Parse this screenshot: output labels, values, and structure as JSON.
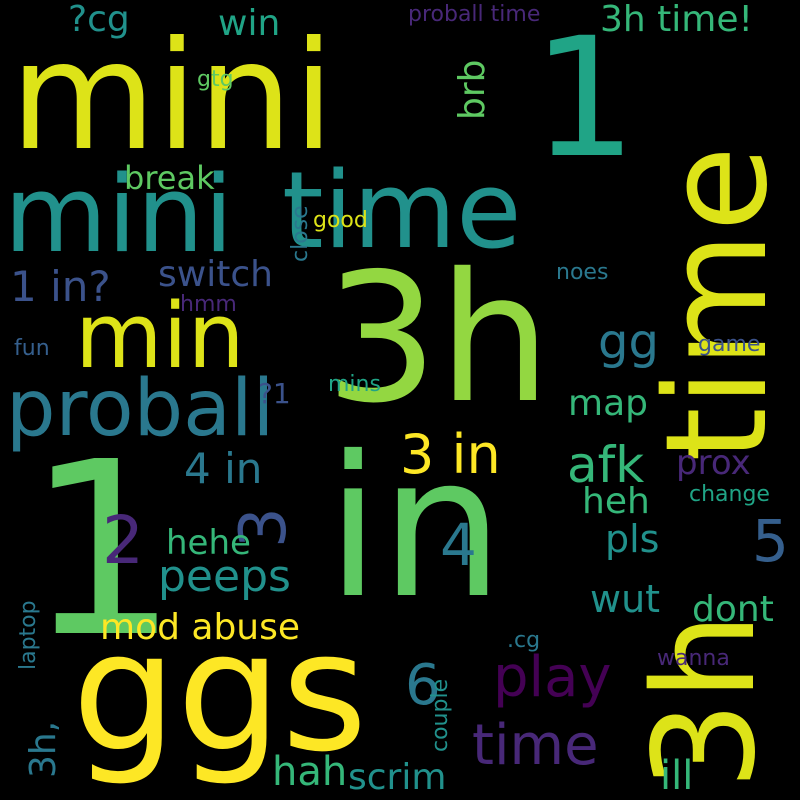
{
  "palette": {
    "background": "#000000",
    "yellow": "#fde725",
    "yellow_green": "#dde318",
    "lime": "#93d741",
    "green": "#5ec962",
    "mint": "#35b779",
    "teal_green": "#20a486",
    "teal": "#21918c",
    "steel_teal": "#2a788e",
    "blue": "#355f8d",
    "indigo": "#3b528b",
    "purple": "#482878",
    "dark_purple": "#440154"
  },
  "words": [
    {
      "text": "1",
      "color": "#5ec962"
    },
    {
      "text": "in",
      "color": "#5ec962"
    },
    {
      "text": "3h",
      "color": "#93d741"
    },
    {
      "text": "ggs",
      "color": "#fde725"
    },
    {
      "text": "mini",
      "color": "#dde318"
    },
    {
      "text": "1",
      "color": "#20a486"
    },
    {
      "text": "mini",
      "color": "#21918c"
    },
    {
      "text": "time",
      "color": "#21918c"
    },
    {
      "text": "time",
      "color": "#dde318"
    },
    {
      "text": "3h",
      "color": "#dde318"
    },
    {
      "text": "min",
      "color": "#dde318"
    },
    {
      "text": "proball",
      "color": "#2a788e"
    },
    {
      "text": "3 in",
      "color": "#fde725"
    },
    {
      "text": "afk",
      "color": "#35b779"
    },
    {
      "text": "play",
      "color": "#440154"
    },
    {
      "text": "time",
      "color": "#482878"
    },
    {
      "text": "peeps",
      "color": "#21918c"
    },
    {
      "text": "4 in",
      "color": "#2a788e"
    },
    {
      "text": "1 in?",
      "color": "#3b528b"
    },
    {
      "text": "switch",
      "color": "#3b528b"
    },
    {
      "text": "2",
      "color": "#482878"
    },
    {
      "text": "3",
      "color": "#3b528b"
    },
    {
      "text": "4",
      "color": "#2a788e"
    },
    {
      "text": "5",
      "color": "#355f8d"
    },
    {
      "text": "6",
      "color": "#2a788e"
    },
    {
      "text": "gg",
      "color": "#2a788e"
    },
    {
      "text": "map",
      "color": "#35b779"
    },
    {
      "text": "heh",
      "color": "#35b779"
    },
    {
      "text": "prox",
      "color": "#482878"
    },
    {
      "text": "pls",
      "color": "#21918c"
    },
    {
      "text": "hehe",
      "color": "#35b779"
    },
    {
      "text": "mod abuse",
      "color": "#fde725"
    },
    {
      "text": "wut",
      "color": "#21918c"
    },
    {
      "text": "dont",
      "color": "#35b779"
    },
    {
      "text": "hah",
      "color": "#35b779"
    },
    {
      "text": "scrim",
      "color": "#21918c"
    },
    {
      "text": "ill",
      "color": "#35b779"
    },
    {
      "text": "3h,",
      "color": "#2a788e"
    },
    {
      "text": "couple",
      "color": "#21918c"
    },
    {
      "text": "laptop",
      "color": "#2a788e"
    },
    {
      "text": "wanna",
      "color": "#482878"
    },
    {
      "text": ".cg",
      "color": "#2a788e"
    },
    {
      "text": "change",
      "color": "#20a486"
    },
    {
      "text": "game",
      "color": "#3b528b"
    },
    {
      "text": "noes",
      "color": "#2a788e"
    },
    {
      "text": "mins",
      "color": "#20a486"
    },
    {
      "text": "?1",
      "color": "#3b528b"
    },
    {
      "text": "fun",
      "color": "#355f8d"
    },
    {
      "text": "hmm",
      "color": "#482878"
    },
    {
      "text": "close",
      "color": "#2a788e"
    },
    {
      "text": "good",
      "color": "#dde318"
    },
    {
      "text": "break",
      "color": "#5ec962"
    },
    {
      "text": "gtg",
      "color": "#5ec962"
    },
    {
      "text": "?cg",
      "color": "#21918c"
    },
    {
      "text": "win",
      "color": "#20a486"
    },
    {
      "text": "proball time",
      "color": "#482878"
    },
    {
      "text": "3h time!",
      "color": "#35b779"
    },
    {
      "text": "brb",
      "color": "#5ec962"
    }
  ]
}
